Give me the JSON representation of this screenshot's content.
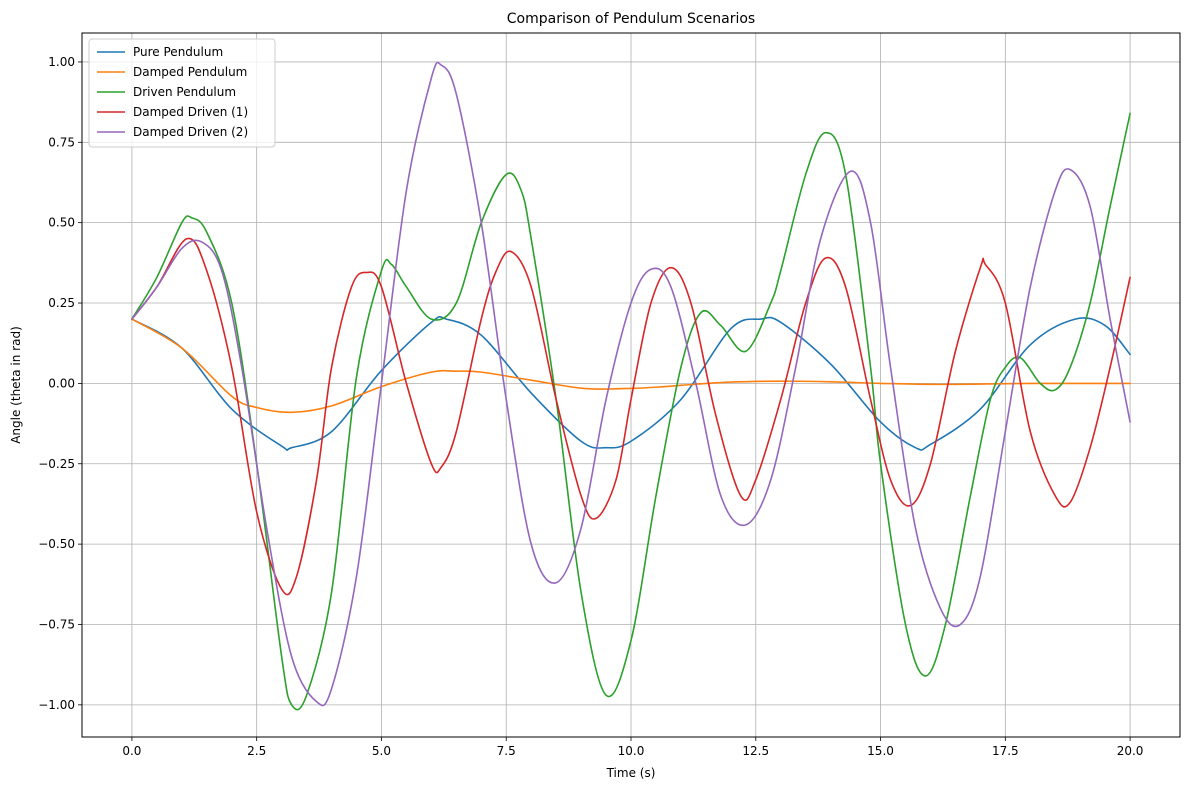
{
  "chart_data": {
    "type": "line",
    "title": "Comparison of Pendulum Scenarios",
    "xlabel": "Time (s)",
    "ylabel": "Angle (theta in rad)",
    "xlim": [
      -1.0,
      21.0
    ],
    "ylim": [
      -1.1,
      1.09
    ],
    "xticks": [
      0.0,
      2.5,
      5.0,
      7.5,
      10.0,
      12.5,
      15.0,
      17.5,
      20.0
    ],
    "xtick_labels": [
      "0.0",
      "2.5",
      "5.0",
      "7.5",
      "10.0",
      "12.5",
      "15.0",
      "17.5",
      "20.0"
    ],
    "yticks": [
      -1.0,
      -0.75,
      -0.5,
      -0.25,
      0.0,
      0.25,
      0.5,
      0.75,
      1.0
    ],
    "ytick_labels": [
      "−1.00",
      "−0.75",
      "−0.50",
      "−0.25",
      "0.00",
      "0.25",
      "0.50",
      "0.75",
      "1.00"
    ],
    "grid": true,
    "legend_position": "top-left",
    "series": [
      {
        "name": "Pure Pendulum",
        "color": "#1f77b4",
        "points": [
          [
            0,
            0.2
          ],
          [
            1,
            0.11
          ],
          [
            2,
            -0.08
          ],
          [
            3,
            -0.195
          ],
          [
            3.2,
            -0.2
          ],
          [
            4,
            -0.15
          ],
          [
            5,
            0.04
          ],
          [
            6,
            0.19
          ],
          [
            6.3,
            0.2
          ],
          [
            7,
            0.15
          ],
          [
            8,
            -0.03
          ],
          [
            9,
            -0.18
          ],
          [
            9.5,
            -0.2
          ],
          [
            10,
            -0.18
          ],
          [
            11,
            -0.05
          ],
          [
            12,
            0.17
          ],
          [
            12.6,
            0.2
          ],
          [
            13,
            0.19
          ],
          [
            14,
            0.06
          ],
          [
            15,
            -0.12
          ],
          [
            15.7,
            -0.2
          ],
          [
            16,
            -0.19
          ],
          [
            17,
            -0.08
          ],
          [
            18,
            0.12
          ],
          [
            18.9,
            0.2
          ],
          [
            19.5,
            0.18
          ],
          [
            20,
            0.09
          ]
        ]
      },
      {
        "name": "Damped Pendulum",
        "color": "#ff7f0e",
        "points": [
          [
            0,
            0.2
          ],
          [
            1,
            0.11
          ],
          [
            2,
            -0.04
          ],
          [
            2.5,
            -0.075
          ],
          [
            3.2,
            -0.09
          ],
          [
            4,
            -0.07
          ],
          [
            5,
            -0.01
          ],
          [
            6,
            0.035
          ],
          [
            6.5,
            0.038
          ],
          [
            7,
            0.035
          ],
          [
            8,
            0.01
          ],
          [
            9,
            -0.015
          ],
          [
            9.7,
            -0.017
          ],
          [
            10.5,
            -0.012
          ],
          [
            11,
            -0.006
          ],
          [
            12,
            0.004
          ],
          [
            13,
            0.007
          ],
          [
            14,
            0.005
          ],
          [
            15,
            0.0
          ],
          [
            16,
            -0.003
          ],
          [
            17,
            -0.002
          ],
          [
            18,
            0.0
          ],
          [
            19,
            0.0
          ],
          [
            20,
            0.0
          ]
        ]
      },
      {
        "name": "Driven Pendulum",
        "color": "#2ca02c",
        "points": [
          [
            0,
            0.2
          ],
          [
            0.5,
            0.33
          ],
          [
            1,
            0.5
          ],
          [
            1.2,
            0.515
          ],
          [
            1.5,
            0.47
          ],
          [
            2,
            0.25
          ],
          [
            2.5,
            -0.25
          ],
          [
            3,
            -0.85
          ],
          [
            3.2,
            -1.0
          ],
          [
            3.5,
            -0.97
          ],
          [
            4,
            -0.65
          ],
          [
            4.5,
            0.02
          ],
          [
            5,
            0.35
          ],
          [
            5.2,
            0.37
          ],
          [
            5.5,
            0.3
          ],
          [
            6,
            0.2
          ],
          [
            6.5,
            0.25
          ],
          [
            7,
            0.5
          ],
          [
            7.5,
            0.65
          ],
          [
            7.8,
            0.6
          ],
          [
            8,
            0.45
          ],
          [
            8.5,
            -0.05
          ],
          [
            9,
            -0.65
          ],
          [
            9.5,
            -0.97
          ],
          [
            10,
            -0.8
          ],
          [
            10.5,
            -0.35
          ],
          [
            11,
            0.05
          ],
          [
            11.4,
            0.22
          ],
          [
            11.8,
            0.18
          ],
          [
            12.3,
            0.1
          ],
          [
            12.8,
            0.25
          ],
          [
            13,
            0.35
          ],
          [
            13.5,
            0.65
          ],
          [
            13.9,
            0.78
          ],
          [
            14.3,
            0.65
          ],
          [
            14.8,
            0.05
          ],
          [
            15,
            -0.25
          ],
          [
            15.5,
            -0.75
          ],
          [
            15.9,
            -0.91
          ],
          [
            16.3,
            -0.75
          ],
          [
            16.8,
            -0.35
          ],
          [
            17.2,
            -0.05
          ],
          [
            17.5,
            0.05
          ],
          [
            17.8,
            0.08
          ],
          [
            18.2,
            0.0
          ],
          [
            18.5,
            -0.02
          ],
          [
            18.8,
            0.05
          ],
          [
            19.2,
            0.25
          ],
          [
            19.6,
            0.55
          ],
          [
            20,
            0.84
          ]
        ]
      },
      {
        "name": "Damped Driven (1)",
        "color": "#d62728",
        "points": [
          [
            0,
            0.2
          ],
          [
            0.5,
            0.3
          ],
          [
            1.1,
            0.45
          ],
          [
            1.5,
            0.35
          ],
          [
            2,
            0.05
          ],
          [
            2.5,
            -0.4
          ],
          [
            3,
            -0.64
          ],
          [
            3.3,
            -0.6
          ],
          [
            3.7,
            -0.3
          ],
          [
            4,
            0.05
          ],
          [
            4.4,
            0.3
          ],
          [
            4.7,
            0.345
          ],
          [
            5,
            0.3
          ],
          [
            5.5,
            0.0
          ],
          [
            6,
            -0.25
          ],
          [
            6.2,
            -0.26
          ],
          [
            6.5,
            -0.15
          ],
          [
            7,
            0.2
          ],
          [
            7.3,
            0.35
          ],
          [
            7.6,
            0.41
          ],
          [
            8,
            0.3
          ],
          [
            8.5,
            -0.05
          ],
          [
            9,
            -0.35
          ],
          [
            9.3,
            -0.42
          ],
          [
            9.7,
            -0.3
          ],
          [
            10,
            -0.05
          ],
          [
            10.4,
            0.25
          ],
          [
            10.8,
            0.36
          ],
          [
            11.2,
            0.25
          ],
          [
            11.7,
            -0.1
          ],
          [
            12.2,
            -0.35
          ],
          [
            12.5,
            -0.3
          ],
          [
            13,
            -0.05
          ],
          [
            13.5,
            0.25
          ],
          [
            13.9,
            0.39
          ],
          [
            14.3,
            0.3
          ],
          [
            14.8,
            -0.05
          ],
          [
            15.2,
            -0.3
          ],
          [
            15.6,
            -0.38
          ],
          [
            16,
            -0.25
          ],
          [
            16.5,
            0.1
          ],
          [
            17,
            0.36
          ],
          [
            17.1,
            0.37
          ],
          [
            17.5,
            0.25
          ],
          [
            18,
            -0.15
          ],
          [
            18.5,
            -0.35
          ],
          [
            18.8,
            -0.37
          ],
          [
            19.2,
            -0.2
          ],
          [
            19.6,
            0.05
          ],
          [
            20,
            0.33
          ]
        ]
      },
      {
        "name": "Damped Driven (2)",
        "color": "#9467bd",
        "points": [
          [
            0,
            0.2
          ],
          [
            0.5,
            0.3
          ],
          [
            1,
            0.42
          ],
          [
            1.4,
            0.44
          ],
          [
            1.8,
            0.35
          ],
          [
            2.2,
            0.05
          ],
          [
            2.7,
            -0.45
          ],
          [
            3.2,
            -0.85
          ],
          [
            3.7,
            -0.99
          ],
          [
            4,
            -0.95
          ],
          [
            4.5,
            -0.6
          ],
          [
            5,
            0.0
          ],
          [
            5.5,
            0.6
          ],
          [
            6,
            0.95
          ],
          [
            6.2,
            0.99
          ],
          [
            6.5,
            0.9
          ],
          [
            7,
            0.5
          ],
          [
            7.5,
            -0.05
          ],
          [
            8,
            -0.5
          ],
          [
            8.5,
            -0.62
          ],
          [
            9,
            -0.45
          ],
          [
            9.5,
            -0.05
          ],
          [
            10,
            0.25
          ],
          [
            10.4,
            0.355
          ],
          [
            10.8,
            0.3
          ],
          [
            11.3,
            0.0
          ],
          [
            11.8,
            -0.35
          ],
          [
            12.3,
            -0.44
          ],
          [
            12.8,
            -0.3
          ],
          [
            13.3,
            0.05
          ],
          [
            13.8,
            0.45
          ],
          [
            14.4,
            0.66
          ],
          [
            14.8,
            0.5
          ],
          [
            15.2,
            0.05
          ],
          [
            15.7,
            -0.45
          ],
          [
            16.2,
            -0.7
          ],
          [
            16.6,
            -0.75
          ],
          [
            17,
            -0.6
          ],
          [
            17.5,
            -0.15
          ],
          [
            18,
            0.3
          ],
          [
            18.5,
            0.6
          ],
          [
            18.8,
            0.665
          ],
          [
            19.2,
            0.55
          ],
          [
            19.6,
            0.2
          ],
          [
            20,
            -0.12
          ]
        ]
      }
    ]
  }
}
